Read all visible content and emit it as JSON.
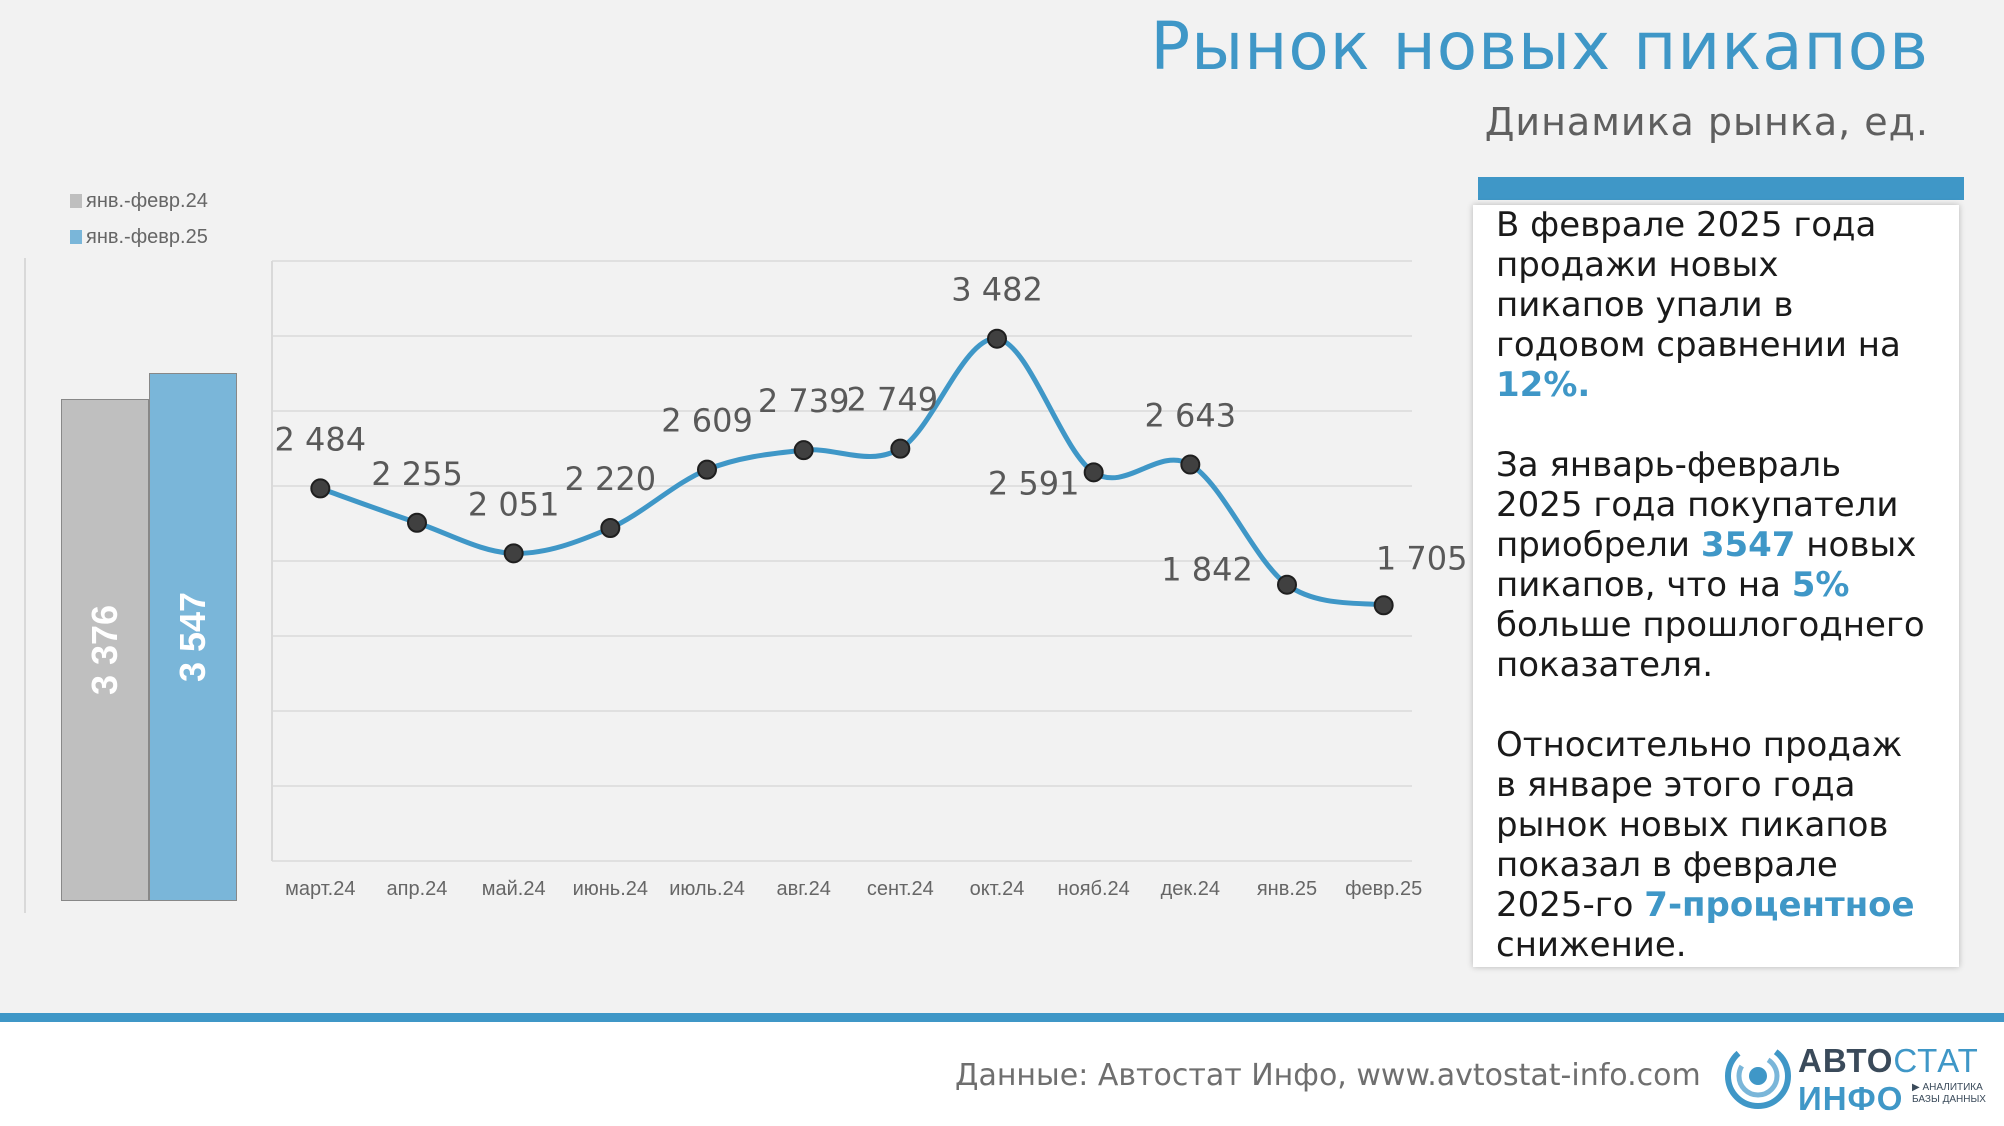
{
  "header": {
    "title": "Рынок новых пикапов",
    "subtitle": "Динамика рынка, ед."
  },
  "legend": {
    "items": [
      {
        "label": "янв.-февр.24",
        "color": "#bfbfbf"
      },
      {
        "label": "янв.-февр.25",
        "color": "#7ab6d9"
      }
    ]
  },
  "ytd_bars": {
    "items": [
      {
        "label": "3 376",
        "value": 3376,
        "color": "#bfbfbf"
      },
      {
        "label": "3 547",
        "value": 3547,
        "color": "#7ab6d9"
      }
    ]
  },
  "chart_data": {
    "type": "line",
    "title": "",
    "xlabel": "",
    "ylabel": "",
    "grid": true,
    "ylim": [
      0,
      4000
    ],
    "line_color": "#3f97c7",
    "categories": [
      "март.24",
      "апр.24",
      "май.24",
      "июнь.24",
      "июль.24",
      "авг.24",
      "сент.24",
      "окт.24",
      "нояб.24",
      "дек.24",
      "янв.25",
      "февр.25"
    ],
    "values": [
      2484,
      2255,
      2051,
      2220,
      2609,
      2739,
      2749,
      3482,
      2591,
      2643,
      1842,
      1705
    ],
    "value_labels": [
      "2 484",
      "2 255",
      "2 051",
      "2 220",
      "2 609",
      "2 739",
      "2 749",
      "3 482",
      "2 591",
      "2 643",
      "1 842",
      "1 705"
    ]
  },
  "info": {
    "p1_text": "В феврале 2025 года продажи новых пикапов упали в годовом сравнении на",
    "p1_hl": "12%.",
    "p2_a": "За январь-февраль 2025 года покупатели приобрели",
    "p2_hl1": "3547",
    "p2_b": "новых пикапов, что на",
    "p2_hl2": "5%",
    "p2_c": "больше прошлогоднего показателя.",
    "p3_a": "Относительно продаж в январе этого года рынок новых пикапов показал в феврале 2025-го",
    "p3_hl": "7-процентное",
    "p3_b": "снижение."
  },
  "footer": {
    "source": "Данные: Автостат Инфо, www.avtostat-info.com",
    "logo_line1_a": "АВТО",
    "logo_line1_b": "СТАТ",
    "logo_line2": "ИНФО",
    "logo_tag1": "▶ АНАЛИТИКА",
    "logo_tag2": "БАЗЫ ДАННЫХ"
  }
}
